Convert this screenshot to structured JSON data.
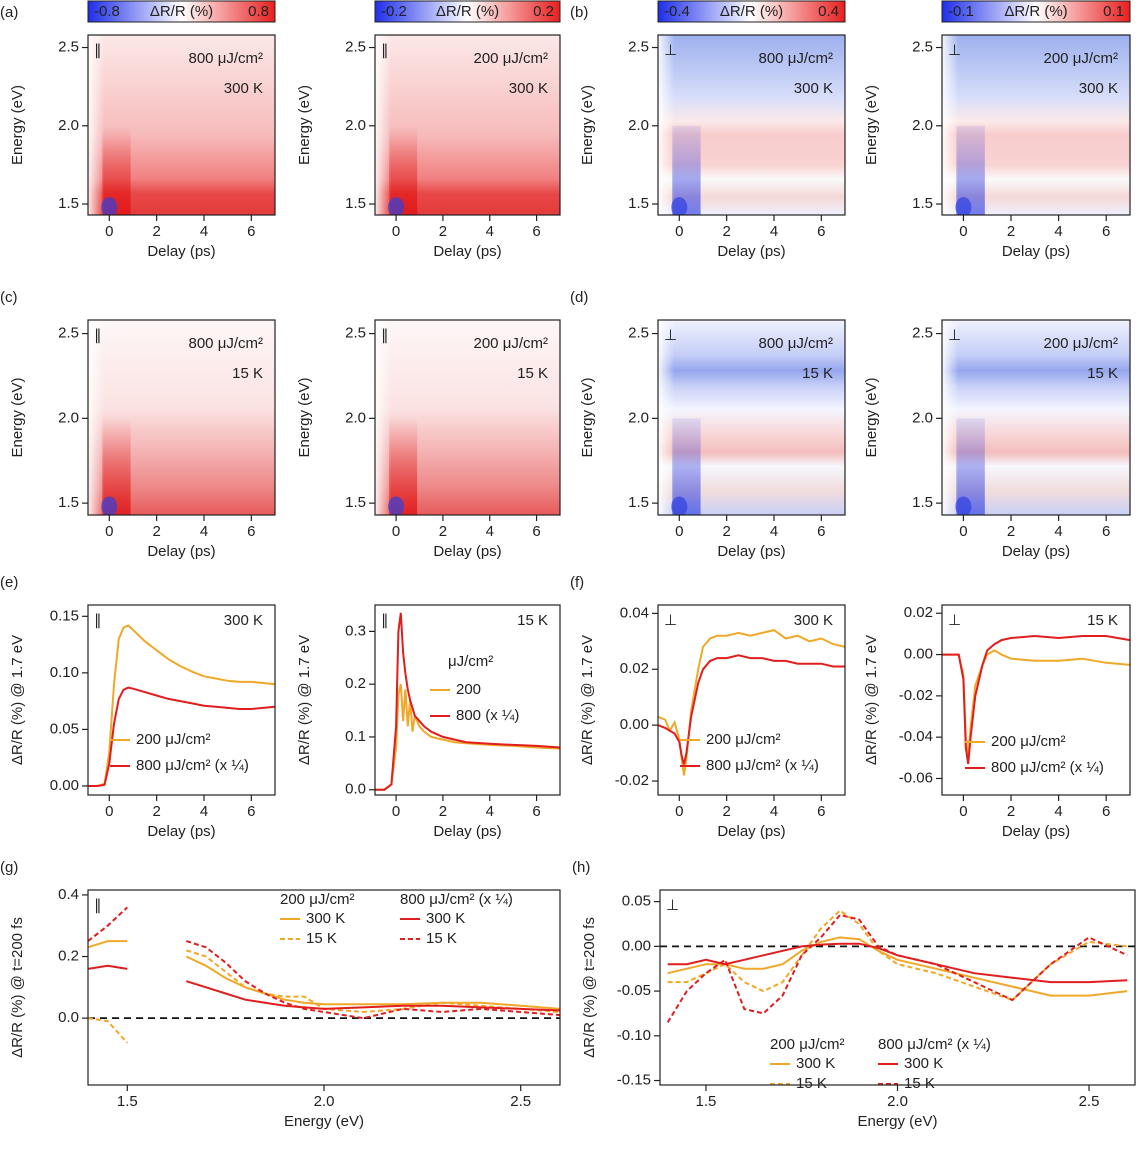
{
  "chart_data": [
    {
      "type": "heatmap",
      "panel_label": "(a)",
      "polarization": "∥",
      "annotations": [
        "800 μJ/cm²",
        "300 K"
      ],
      "colorbar_label": "ΔR/R (%)",
      "zlim": [
        -0.8,
        0.8
      ],
      "xlabel": "Delay (ps)",
      "ylabel": "Energy (eV)",
      "xlim": [
        -0.9,
        7
      ],
      "ylim": [
        1.43,
        2.58
      ],
      "xticks": [
        0,
        2,
        4,
        6
      ],
      "yticks": [
        1.5,
        {
          "value": 2,
          "label": "2.0"
        },
        2.5
      ]
    },
    {
      "type": "heatmap",
      "polarization": "∥",
      "annotations": [
        "200 μJ/cm²",
        "300 K"
      ],
      "colorbar_label": "ΔR/R (%)",
      "zlim": [
        -0.2,
        0.2
      ],
      "xlabel": "Delay (ps)",
      "ylabel": "Energy (eV)",
      "xlim": [
        -0.9,
        7
      ],
      "ylim": [
        1.43,
        2.58
      ],
      "xticks": [
        0,
        2,
        4,
        6
      ],
      "yticks": [
        1.5,
        {
          "value": 2,
          "label": "2.0"
        },
        2.5
      ]
    },
    {
      "type": "heatmap",
      "panel_label": "(b)",
      "polarization": "⊥",
      "annotations": [
        "800 μJ/cm²",
        "300 K"
      ],
      "colorbar_label": "ΔR/R (%)",
      "zlim": [
        -0.4,
        0.4
      ],
      "xlabel": "Delay (ps)",
      "ylabel": "Energy (eV)",
      "xlim": [
        -0.9,
        7
      ],
      "ylim": [
        1.43,
        2.58
      ],
      "xticks": [
        0,
        2,
        4,
        6
      ],
      "yticks": [
        1.5,
        {
          "value": 2,
          "label": "2.0"
        },
        2.5
      ]
    },
    {
      "type": "heatmap",
      "polarization": "⊥",
      "annotations": [
        "200 μJ/cm²",
        "300 K"
      ],
      "colorbar_label": "ΔR/R (%)",
      "zlim": [
        -0.1,
        0.1
      ],
      "xlabel": "Delay (ps)",
      "ylabel": "Energy (eV)",
      "xlim": [
        -0.9,
        7
      ],
      "ylim": [
        1.43,
        2.58
      ],
      "xticks": [
        0,
        2,
        4,
        6
      ],
      "yticks": [
        1.5,
        {
          "value": 2,
          "label": "2.0"
        },
        2.5
      ]
    },
    {
      "type": "heatmap",
      "panel_label": "(c)",
      "polarization": "∥",
      "annotations": [
        "800 μJ/cm²",
        "15 K"
      ],
      "xlabel": "Delay (ps)",
      "ylabel": "Energy (eV)",
      "xlim": [
        -0.9,
        7
      ],
      "ylim": [
        1.43,
        2.58
      ],
      "xticks": [
        0,
        2,
        4,
        6
      ],
      "yticks": [
        1.5,
        {
          "value": 2,
          "label": "2.0"
        },
        2.5
      ]
    },
    {
      "type": "heatmap",
      "polarization": "∥",
      "annotations": [
        "200 μJ/cm²",
        "15 K"
      ],
      "xlabel": "Delay (ps)",
      "ylabel": "Energy (eV)",
      "xlim": [
        -0.9,
        7
      ],
      "ylim": [
        1.43,
        2.58
      ],
      "xticks": [
        0,
        2,
        4,
        6
      ],
      "yticks": [
        1.5,
        {
          "value": 2,
          "label": "2.0"
        },
        2.5
      ]
    },
    {
      "type": "heatmap",
      "panel_label": "(d)",
      "polarization": "⊥",
      "annotations": [
        "800 μJ/cm²",
        "15 K"
      ],
      "xlabel": "Delay (ps)",
      "ylabel": "Energy (eV)",
      "xlim": [
        -0.9,
        7
      ],
      "ylim": [
        1.43,
        2.58
      ],
      "xticks": [
        0,
        2,
        4,
        6
      ],
      "yticks": [
        1.5,
        {
          "value": 2,
          "label": "2.0"
        },
        2.5
      ]
    },
    {
      "type": "heatmap",
      "polarization": "⊥",
      "annotations": [
        "200 μJ/cm²",
        "15 K"
      ],
      "xlabel": "Delay (ps)",
      "ylabel": "Energy (eV)",
      "xlim": [
        -0.9,
        7
      ],
      "ylim": [
        1.43,
        2.58
      ],
      "xticks": [
        0,
        2,
        4,
        6
      ],
      "yticks": [
        1.5,
        {
          "value": 2,
          "label": "2.0"
        },
        2.5
      ]
    },
    {
      "type": "line",
      "panel_label": "(e)",
      "polarization": "∥",
      "annotations": [
        "300 K"
      ],
      "xlabel": "Delay (ps)",
      "ylabel": "ΔR/R (%) @ 1.7 eV",
      "xlim": [
        -0.9,
        7
      ],
      "ylim": [
        -0.008,
        0.16
      ],
      "xticks": [
        0,
        2,
        4,
        6
      ],
      "yticks": [
        {
          "value": 0,
          "label": "0.00"
        },
        0.05,
        {
          "value": 0.1,
          "label": "0.10"
        },
        0.15
      ],
      "x": [
        -0.9,
        -0.5,
        -0.2,
        0,
        0.2,
        0.4,
        0.6,
        0.8,
        1.0,
        1.5,
        2,
        2.5,
        3,
        3.5,
        4,
        4.5,
        5,
        5.5,
        6,
        6.5,
        7
      ],
      "series": [
        {
          "name": "200 μJ/cm²",
          "color": "#f0a828",
          "values": [
            0,
            0,
            0.002,
            0.03,
            0.09,
            0.13,
            0.14,
            0.142,
            0.138,
            0.128,
            0.12,
            0.112,
            0.106,
            0.101,
            0.097,
            0.095,
            0.093,
            0.092,
            0.092,
            0.091,
            0.09
          ]
        },
        {
          "name": "800 μJ/cm² (x ¼)",
          "color": "#e01e1e",
          "values": [
            0,
            0,
            0.001,
            0.02,
            0.055,
            0.077,
            0.085,
            0.087,
            0.086,
            0.083,
            0.08,
            0.077,
            0.075,
            0.073,
            0.071,
            0.07,
            0.069,
            0.068,
            0.068,
            0.069,
            0.07
          ]
        }
      ]
    },
    {
      "type": "line",
      "polarization": "∥",
      "annotations": [
        "15 K"
      ],
      "legend_title": "μJ/cm²",
      "xlabel": "Delay (ps)",
      "ylabel": "ΔR/R (%) @ 1.7 eV",
      "xlim": [
        -0.9,
        7
      ],
      "ylim": [
        -0.01,
        0.35
      ],
      "xticks": [
        0,
        2,
        4,
        6
      ],
      "yticks": [
        {
          "value": 0,
          "label": "0.0"
        },
        0.1,
        0.2,
        0.3
      ],
      "x": [
        -0.9,
        -0.5,
        -0.2,
        0,
        0.1,
        0.2,
        0.3,
        0.4,
        0.5,
        0.6,
        0.7,
        0.8,
        1.0,
        1.2,
        1.5,
        2,
        2.5,
        3,
        4,
        5,
        6,
        7
      ],
      "series": [
        {
          "name": "200",
          "color": "#f0a828",
          "values": [
            0,
            0,
            0.01,
            0.08,
            0.18,
            0.2,
            0.13,
            0.19,
            0.12,
            0.17,
            0.11,
            0.14,
            0.12,
            0.11,
            0.1,
            0.095,
            0.09,
            0.088,
            0.085,
            0.083,
            0.08,
            0.078
          ]
        },
        {
          "name": "800 (x ¼)",
          "color": "#e01e1e",
          "values": [
            0,
            0,
            0.01,
            0.12,
            0.3,
            0.335,
            0.26,
            0.22,
            0.19,
            0.17,
            0.155,
            0.14,
            0.13,
            0.12,
            0.11,
            0.1,
            0.095,
            0.09,
            0.087,
            0.085,
            0.083,
            0.08
          ]
        }
      ]
    },
    {
      "type": "line",
      "panel_label": "(f)",
      "polarization": "⊥",
      "annotations": [
        "300 K"
      ],
      "xlabel": "Delay (ps)",
      "ylabel": "ΔR/R (%) @ 1.7 eV",
      "xlim": [
        -0.9,
        7
      ],
      "ylim": [
        -0.025,
        0.043
      ],
      "xticks": [
        0,
        2,
        4,
        6
      ],
      "yticks": [
        -0.02,
        {
          "value": 0,
          "label": "0.00"
        },
        0.02,
        0.04
      ],
      "x": [
        -0.9,
        -0.6,
        -0.4,
        -0.2,
        0,
        0.1,
        0.2,
        0.3,
        0.5,
        0.8,
        1.0,
        1.3,
        1.6,
        2,
        2.5,
        3,
        3.5,
        4,
        4.5,
        5,
        5.5,
        6,
        6.5,
        7
      ],
      "series": [
        {
          "name": "200 μJ/cm²",
          "color": "#f0a828",
          "values": [
            0.003,
            0.002,
            -0.002,
            0.001,
            -0.005,
            -0.012,
            -0.018,
            -0.012,
            0.005,
            0.02,
            0.028,
            0.031,
            0.032,
            0.032,
            0.033,
            0.032,
            0.033,
            0.034,
            0.031,
            0.032,
            0.03,
            0.031,
            0.029,
            0.028
          ]
        },
        {
          "name": "800 μJ/cm² (x ¼)",
          "color": "#e01e1e",
          "values": [
            0,
            -0.001,
            -0.002,
            -0.003,
            -0.006,
            -0.011,
            -0.014,
            -0.01,
            0.003,
            0.015,
            0.02,
            0.023,
            0.024,
            0.024,
            0.025,
            0.024,
            0.024,
            0.023,
            0.023,
            0.022,
            0.022,
            0.022,
            0.021,
            0.021
          ]
        }
      ]
    },
    {
      "type": "line",
      "polarization": "⊥",
      "annotations": [
        "15 K"
      ],
      "xlabel": "Delay (ps)",
      "ylabel": "ΔR/R (%) @ 1.7 eV",
      "xlim": [
        -0.9,
        7
      ],
      "ylim": [
        -0.068,
        0.024
      ],
      "xticks": [
        0,
        2,
        4,
        6
      ],
      "yticks": [
        -0.06,
        -0.04,
        -0.02,
        {
          "value": 0,
          "label": "0.00"
        },
        0.02
      ],
      "x": [
        -0.9,
        -0.5,
        -0.2,
        0,
        0.1,
        0.2,
        0.3,
        0.5,
        0.8,
        1.0,
        1.3,
        1.6,
        2,
        3,
        4,
        5,
        6,
        7
      ],
      "series": [
        {
          "name": "200 μJ/cm²",
          "color": "#f0a828",
          "values": [
            0,
            0,
            0,
            -0.01,
            -0.04,
            -0.05,
            -0.035,
            -0.015,
            -0.005,
            0,
            0.002,
            0,
            -0.002,
            -0.003,
            -0.003,
            -0.002,
            -0.004,
            -0.005
          ]
        },
        {
          "name": "800 μJ/cm² (x ¼)",
          "color": "#e01e1e",
          "values": [
            0,
            0,
            0,
            -0.012,
            -0.045,
            -0.053,
            -0.04,
            -0.02,
            -0.005,
            0.002,
            0.005,
            0.007,
            0.008,
            0.009,
            0.008,
            0.009,
            0.009,
            0.007
          ]
        }
      ]
    },
    {
      "type": "line",
      "panel_label": "(g)",
      "polarization": "∥",
      "zero_line": true,
      "legend_titles": [
        "200 μJ/cm²",
        "800 μJ/cm² (x ¼)"
      ],
      "xlabel": "Energy (eV)",
      "ylabel": "ΔR/R (%) @ t=200 fs",
      "xlim": [
        1.4,
        2.6
      ],
      "ylim": [
        -0.217,
        0.416
      ],
      "xticks": [
        1.5,
        {
          "value": 2,
          "label": "2.0"
        },
        2.5
      ],
      "yticks": [
        {
          "value": 0,
          "label": "0.0"
        },
        0.2,
        0.4
      ],
      "x": [
        1.4,
        1.45,
        1.5,
        1.55,
        1.6,
        1.65,
        1.7,
        1.75,
        1.8,
        1.85,
        1.9,
        1.95,
        2.0,
        2.1,
        2.2,
        2.3,
        2.4,
        2.5,
        2.6
      ],
      "series": [
        {
          "name": "300 K",
          "color": "#f0a828",
          "dashed": false,
          "values": [
            0.23,
            0.25,
            0.25,
            null,
            null,
            0.2,
            0.17,
            0.13,
            0.1,
            0.08,
            0.06,
            0.05,
            0.045,
            0.045,
            0.045,
            0.05,
            0.05,
            0.04,
            0.03
          ]
        },
        {
          "name": "15 K",
          "color": "#f0a828",
          "dashed": true,
          "values": [
            0,
            -0.01,
            -0.08,
            null,
            null,
            0.22,
            0.2,
            0.15,
            0.1,
            0.08,
            0.07,
            0.07,
            0.03,
            0.02,
            0.03,
            0.05,
            0.04,
            0.03,
            0.02
          ]
        },
        {
          "name": "300 K",
          "color": "#e01e1e",
          "dashed": false,
          "values": [
            0.16,
            0.17,
            0.16,
            null,
            null,
            0.12,
            0.1,
            0.08,
            0.06,
            0.05,
            0.04,
            0.035,
            0.03,
            0.035,
            0.04,
            0.04,
            0.035,
            0.03,
            0.025
          ]
        },
        {
          "name": "15 K",
          "color": "#e01e1e",
          "dashed": true,
          "values": [
            0.25,
            0.3,
            0.36,
            null,
            null,
            0.25,
            0.23,
            0.18,
            0.12,
            0.08,
            0.05,
            0.03,
            0.02,
            0,
            0.03,
            0.02,
            0.03,
            0.02,
            0.01
          ]
        }
      ]
    },
    {
      "type": "line",
      "panel_label": "(h)",
      "polarization": "⊥",
      "zero_line": true,
      "legend_titles": [
        "200 μJ/cm²",
        "800 μJ/cm² (x ¼)"
      ],
      "xlabel": "Energy (eV)",
      "ylabel": "ΔR/R (%) @ t=200 fs",
      "xlim": [
        1.38,
        2.62
      ],
      "ylim": [
        -0.155,
        0.063
      ],
      "xticks": [
        1.5,
        {
          "value": 2,
          "label": "2.0"
        },
        2.5
      ],
      "yticks": [
        -0.15,
        {
          "value": -0.1,
          "label": "-0.10"
        },
        -0.05,
        {
          "value": 0,
          "label": "0.00"
        },
        0.05
      ],
      "x": [
        1.4,
        1.45,
        1.5,
        1.55,
        1.6,
        1.65,
        1.7,
        1.75,
        1.8,
        1.85,
        1.9,
        1.95,
        2.0,
        2.1,
        2.2,
        2.3,
        2.4,
        2.5,
        2.6
      ],
      "series": [
        {
          "name": "300 K",
          "color": "#f0a828",
          "dashed": false,
          "values": [
            -0.03,
            -0.025,
            -0.02,
            -0.02,
            -0.025,
            -0.025,
            -0.02,
            -0.005,
            0.005,
            0.01,
            0.008,
            -0.005,
            -0.015,
            -0.025,
            -0.035,
            -0.045,
            -0.055,
            -0.055,
            -0.05
          ]
        },
        {
          "name": "15 K",
          "color": "#f0a828",
          "dashed": true,
          "values": [
            -0.04,
            -0.04,
            -0.03,
            -0.02,
            -0.04,
            -0.05,
            -0.04,
            -0.01,
            0.02,
            0.04,
            0.025,
            -0.005,
            -0.02,
            -0.03,
            -0.045,
            -0.06,
            -0.02,
            0.005,
            0
          ]
        },
        {
          "name": "300 K",
          "color": "#e01e1e",
          "dashed": false,
          "values": [
            -0.02,
            -0.02,
            -0.015,
            -0.02,
            -0.015,
            -0.01,
            -0.005,
            0,
            0.002,
            0.003,
            0.003,
            -0.002,
            -0.01,
            -0.02,
            -0.03,
            -0.035,
            -0.04,
            -0.04,
            -0.038
          ]
        },
        {
          "name": "15 K",
          "color": "#e01e1e",
          "dashed": true,
          "values": [
            -0.085,
            -0.05,
            -0.03,
            -0.015,
            -0.07,
            -0.075,
            -0.055,
            -0.01,
            0.01,
            0.035,
            0.03,
            0,
            -0.01,
            -0.02,
            -0.04,
            -0.06,
            -0.02,
            0.01,
            -0.01
          ]
        }
      ]
    }
  ]
}
